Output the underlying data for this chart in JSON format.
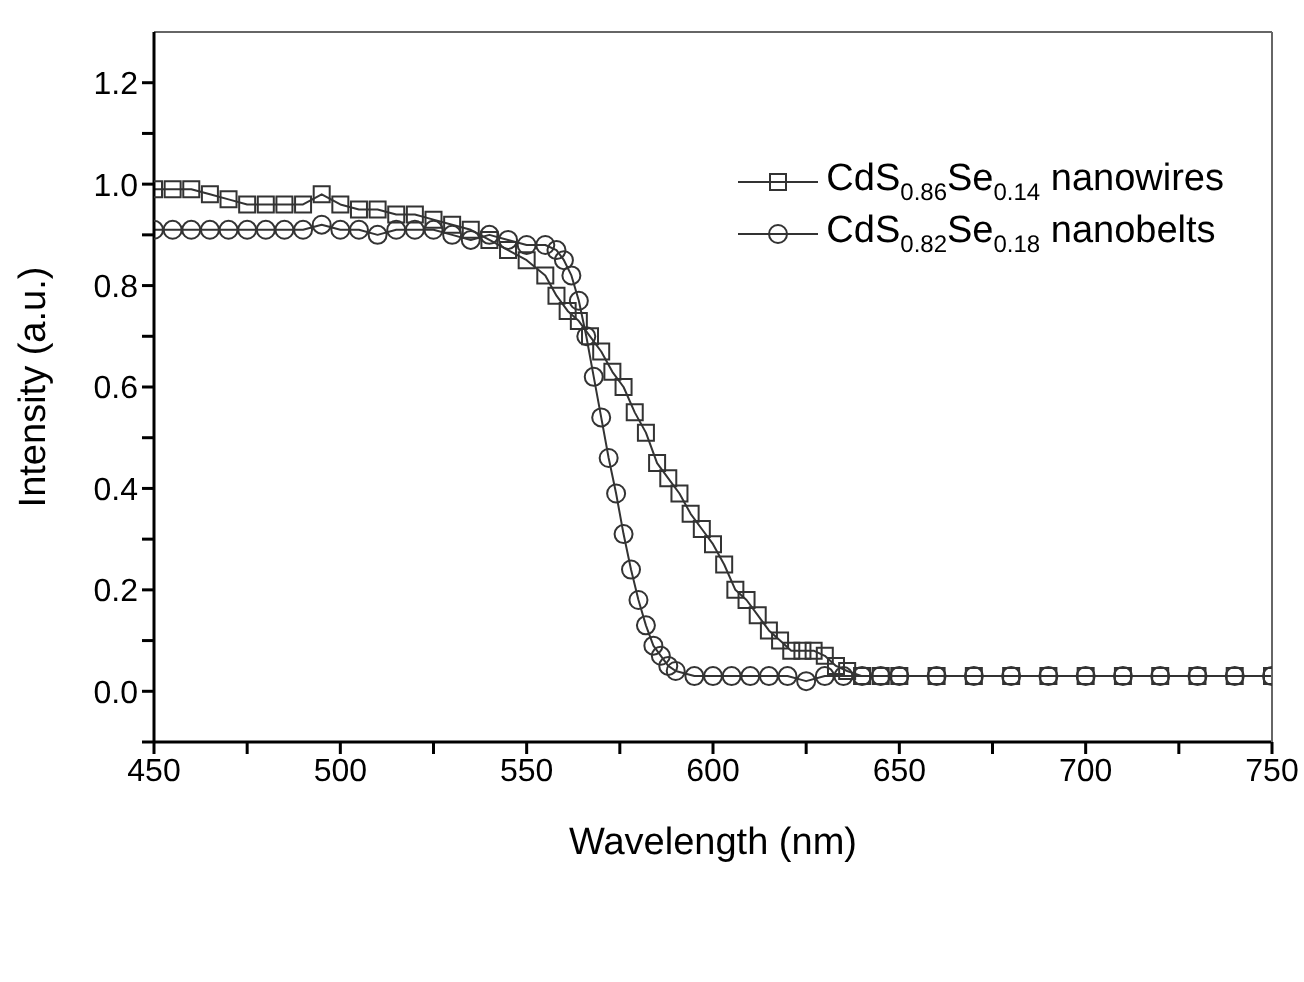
{
  "chart_data": {
    "type": "line",
    "xlabel": "Wavelength (nm)",
    "ylabel": "Intensity (a.u.)",
    "xlim": [
      450,
      750
    ],
    "xticks": [
      450,
      {
        "value": 475,
        "label": null
      },
      500,
      {
        "value": 525,
        "label": null
      },
      550,
      {
        "value": 575,
        "label": null
      },
      600,
      {
        "value": 625,
        "label": null
      },
      650,
      {
        "value": 675,
        "label": null
      },
      700,
      {
        "value": 725,
        "label": null
      },
      750
    ],
    "ylim": [
      -0.1,
      1.3
    ],
    "yticks": [
      {
        "value": -0.1,
        "label": null
      },
      "0.0",
      {
        "value": 0.1,
        "label": null
      },
      0.2,
      {
        "value": 0.3,
        "label": null
      },
      0.4,
      {
        "value": 0.5,
        "label": null
      },
      0.6,
      {
        "value": 0.7,
        "label": null
      },
      0.8,
      {
        "value": 0.9,
        "label": null
      },
      "1.0",
      {
        "value": 1.1,
        "label": null
      },
      1.2
    ],
    "legend": "top right",
    "line_style": "solid",
    "series": [
      {
        "name": "CdS$_{0.86}$Se$_{0.14}$ nanowires",
        "color": "#333333",
        "marker": "square",
        "x": [
          450,
          455,
          460,
          465,
          470,
          475,
          480,
          485,
          490,
          495,
          500,
          505,
          510,
          515,
          520,
          525,
          530,
          535,
          540,
          545,
          550,
          555,
          558,
          561,
          564,
          567,
          570,
          573,
          576,
          579,
          582,
          585,
          588,
          591,
          594,
          597,
          600,
          603,
          606,
          609,
          612,
          615,
          618,
          621,
          624,
          627,
          630,
          633,
          636,
          640,
          645,
          650,
          660,
          670,
          680,
          690,
          700,
          710,
          720,
          730,
          740,
          750
        ],
        "values": [
          0.99,
          0.99,
          0.99,
          0.98,
          0.97,
          0.96,
          0.96,
          0.96,
          0.96,
          0.98,
          0.96,
          0.95,
          0.95,
          0.94,
          0.94,
          0.93,
          0.92,
          0.91,
          0.89,
          0.87,
          0.85,
          0.82,
          0.78,
          0.75,
          0.73,
          0.7,
          0.67,
          0.63,
          0.6,
          0.55,
          0.51,
          0.45,
          0.42,
          0.39,
          0.35,
          0.32,
          0.29,
          0.25,
          0.2,
          0.18,
          0.15,
          0.12,
          0.1,
          0.08,
          0.08,
          0.08,
          0.07,
          0.05,
          0.04,
          0.03,
          0.03,
          0.03,
          0.03,
          0.03,
          0.03,
          0.03,
          0.03,
          0.03,
          0.03,
          0.03,
          0.03,
          0.03
        ]
      },
      {
        "name": "CdS$_{0.82}$Se$_{0.18}$ nanobelts",
        "color": "#333333",
        "marker": "circle",
        "x": [
          450,
          455,
          460,
          465,
          470,
          475,
          480,
          485,
          490,
          495,
          500,
          505,
          510,
          515,
          520,
          525,
          530,
          535,
          540,
          545,
          550,
          555,
          558,
          560,
          562,
          564,
          566,
          568,
          570,
          572,
          574,
          576,
          578,
          580,
          582,
          584,
          586,
          588,
          590,
          595,
          600,
          605,
          610,
          615,
          620,
          625,
          630,
          635,
          640,
          645,
          650,
          660,
          670,
          680,
          690,
          700,
          710,
          720,
          730,
          740,
          750
        ],
        "values": [
          0.91,
          0.91,
          0.91,
          0.91,
          0.91,
          0.91,
          0.91,
          0.91,
          0.91,
          0.92,
          0.91,
          0.91,
          0.9,
          0.91,
          0.91,
          0.91,
          0.9,
          0.89,
          0.9,
          0.89,
          0.88,
          0.88,
          0.87,
          0.85,
          0.82,
          0.77,
          0.7,
          0.62,
          0.54,
          0.46,
          0.39,
          0.31,
          0.24,
          0.18,
          0.13,
          0.09,
          0.07,
          0.05,
          0.04,
          0.03,
          0.03,
          0.03,
          0.03,
          0.03,
          0.03,
          0.02,
          0.03,
          0.03,
          0.03,
          0.03,
          0.03,
          0.03,
          0.03,
          0.03,
          0.03,
          0.03,
          0.03,
          0.03,
          0.03,
          0.03,
          0.03
        ]
      }
    ]
  }
}
